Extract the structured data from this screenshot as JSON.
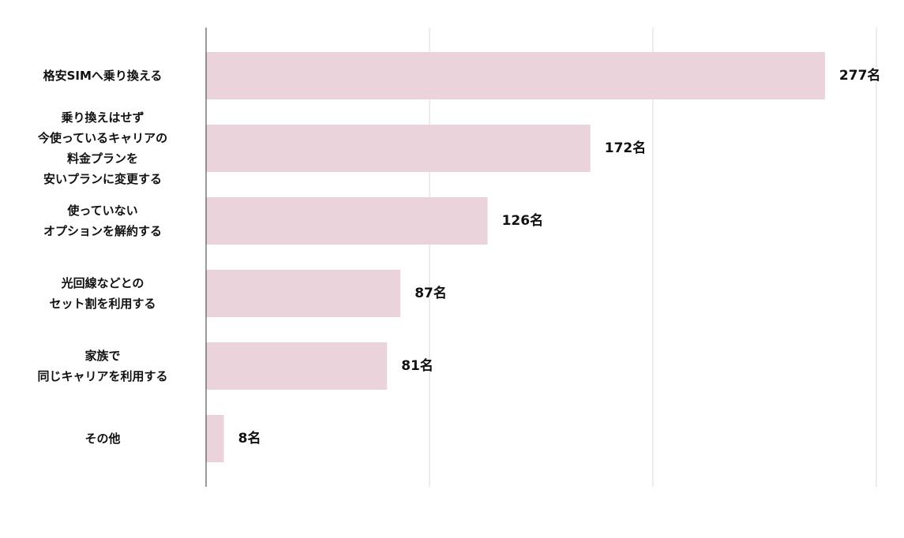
{
  "chart_data": {
    "type": "bar",
    "orientation": "horizontal",
    "categories": [
      "格安SIMへ乗り換える",
      "乗り換えはせず\n今使っているキャリアの\n料金プランを\n安いプランに変更する",
      "使っていない\nオプションを解約する",
      "光回線などとの\nセット割を利用する",
      "家族で\n同じキャリアを利用する",
      "その他"
    ],
    "values": [
      277,
      172,
      126,
      87,
      81,
      8
    ],
    "value_labels": [
      "277名",
      "172名",
      "126名",
      "87名",
      "81名",
      "8名"
    ],
    "color": "#ebd3dc",
    "xlim": [
      0,
      300
    ],
    "xticks": [
      0,
      100,
      200,
      300
    ],
    "grid": true
  }
}
